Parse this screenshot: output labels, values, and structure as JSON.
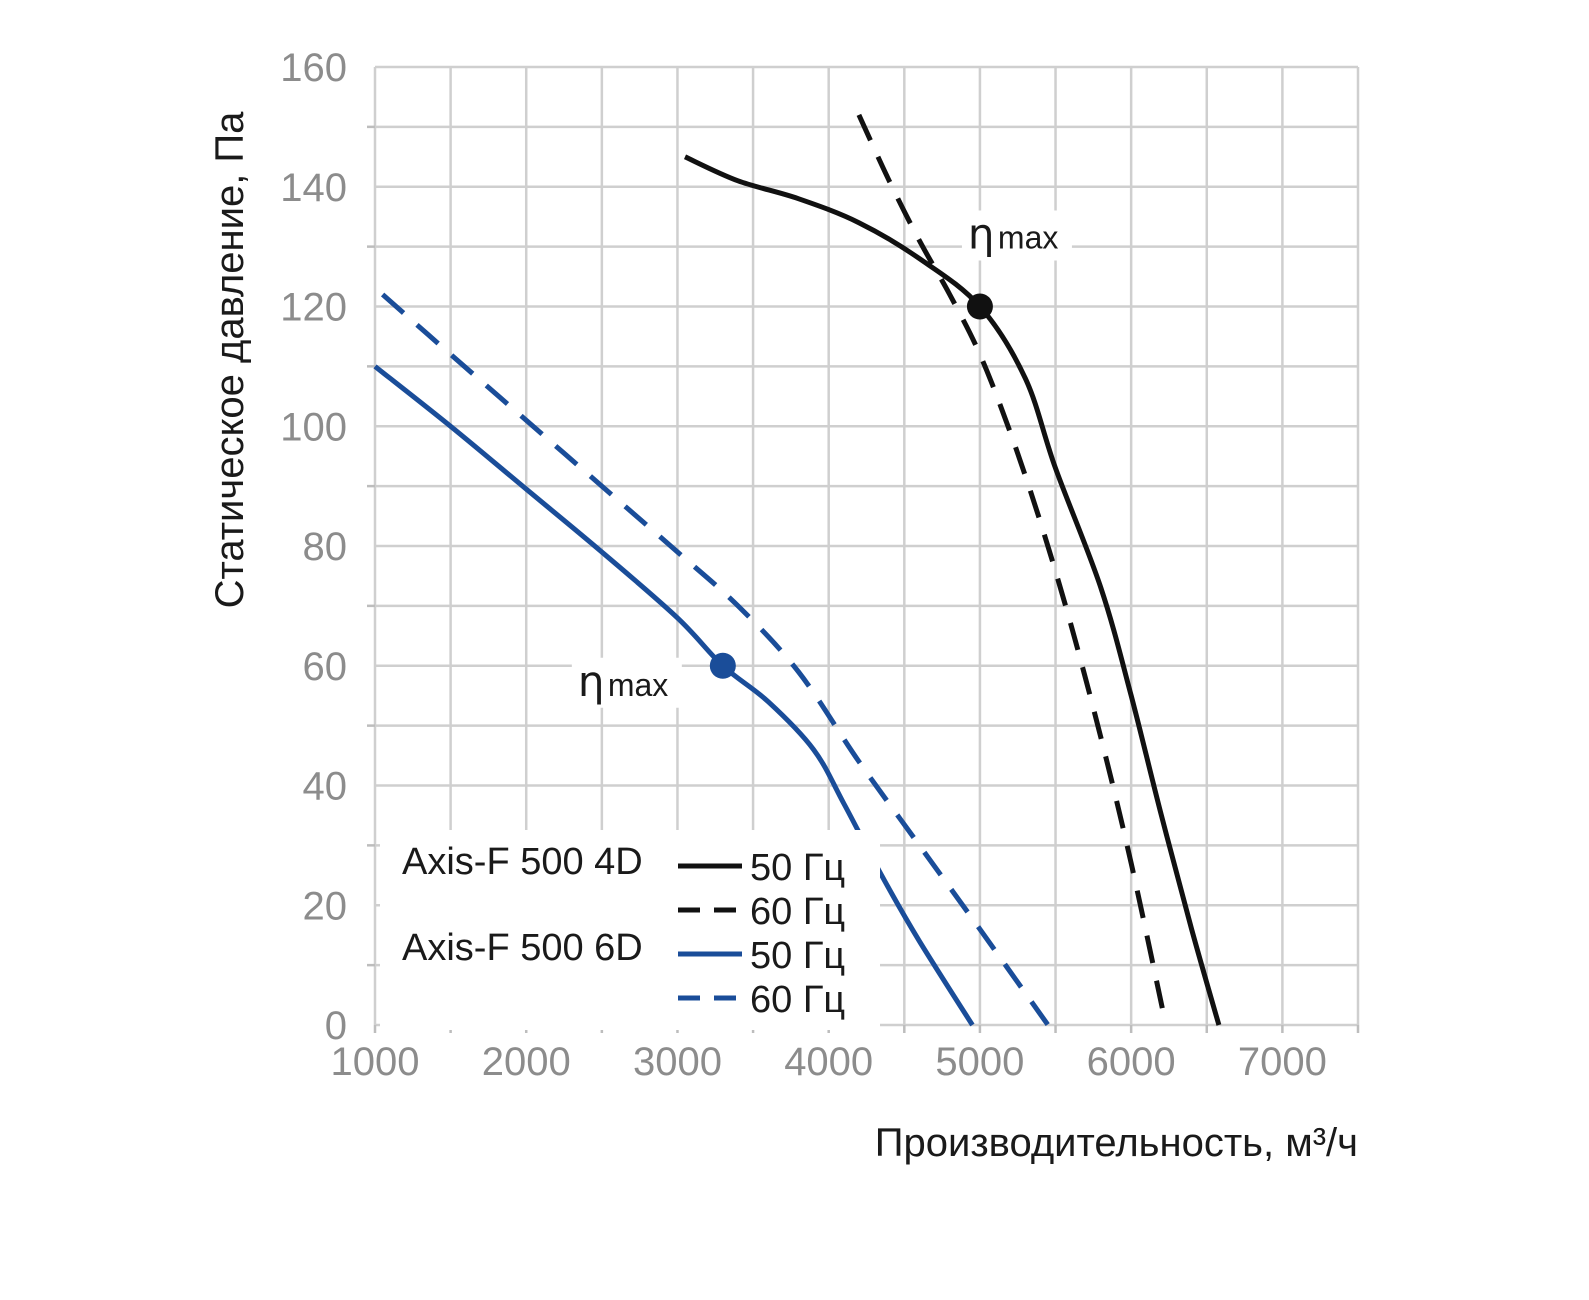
{
  "chart_data": {
    "type": "line",
    "xlabel": "Производительность, м³/ч",
    "ylabel": "Статическое давление, Па",
    "xlim": [
      1000,
      7500
    ],
    "ylim": [
      0,
      160
    ],
    "x_ticks": [
      "1000",
      "2000",
      "3000",
      "4000",
      "5000",
      "6000",
      "7000"
    ],
    "y_ticks": [
      "0",
      "20",
      "40",
      "60",
      "80",
      "100",
      "120",
      "140",
      "160"
    ],
    "grid": true,
    "legend_position": "bottom-left",
    "legend_groups": [
      {
        "model": "Axis-F 500 4D",
        "entries": [
          "50 Гц",
          "60 Гц"
        ]
      },
      {
        "model": "Axis-F 500 6D",
        "entries": [
          "50 Гц",
          "60 Гц"
        ]
      }
    ],
    "series": [
      {
        "name": "50 Гц",
        "model": "Axis-F 500 4D",
        "color": "#111111",
        "dash": "solid",
        "x": [
          3050,
          3400,
          3800,
          4200,
          4600,
          5000,
          5300,
          5500,
          5800,
          6000,
          6200,
          6400,
          6580
        ],
        "y": [
          145,
          141,
          138,
          134,
          128,
          120,
          108,
          93,
          73,
          55,
          35,
          16,
          0
        ]
      },
      {
        "name": "60 Гц",
        "model": "Axis-F 500 4D",
        "color": "#111111",
        "dash": "dashed",
        "x": [
          4200,
          4400,
          4600,
          4800,
          5000,
          5200,
          5400,
          5600,
          5800,
          6000,
          6230
        ],
        "y": [
          152,
          141,
          131,
          122,
          112,
          99,
          84,
          67,
          48,
          27,
          0
        ]
      },
      {
        "name": "50 Гц",
        "model": "Axis-F 500 6D",
        "color": "#1a4d99",
        "dash": "solid",
        "x": [
          1000,
          1500,
          2000,
          2500,
          3000,
          3300,
          3600,
          3900,
          4100,
          4350,
          4600,
          4950
        ],
        "y": [
          110,
          100,
          89.5,
          79,
          68,
          60,
          54,
          46,
          37,
          25,
          14,
          0
        ]
      },
      {
        "name": "60 Гц",
        "model": "Axis-F 500 6D",
        "color": "#1a4d99",
        "dash": "dashed",
        "x": [
          1050,
          1500,
          2000,
          2500,
          3000,
          3400,
          3800,
          4200,
          4600,
          5000,
          5450
        ],
        "y": [
          122,
          112,
          101,
          90,
          79,
          70,
          59,
          44,
          30,
          16,
          0
        ]
      }
    ],
    "annotations": [
      {
        "symbol": "η",
        "text": "max",
        "point_x": 5000,
        "point_y": 120,
        "point_color": "#111111"
      },
      {
        "symbol": "η",
        "text": "max",
        "point_x": 3300,
        "point_y": 60,
        "point_color": "#1a4d99"
      }
    ]
  }
}
